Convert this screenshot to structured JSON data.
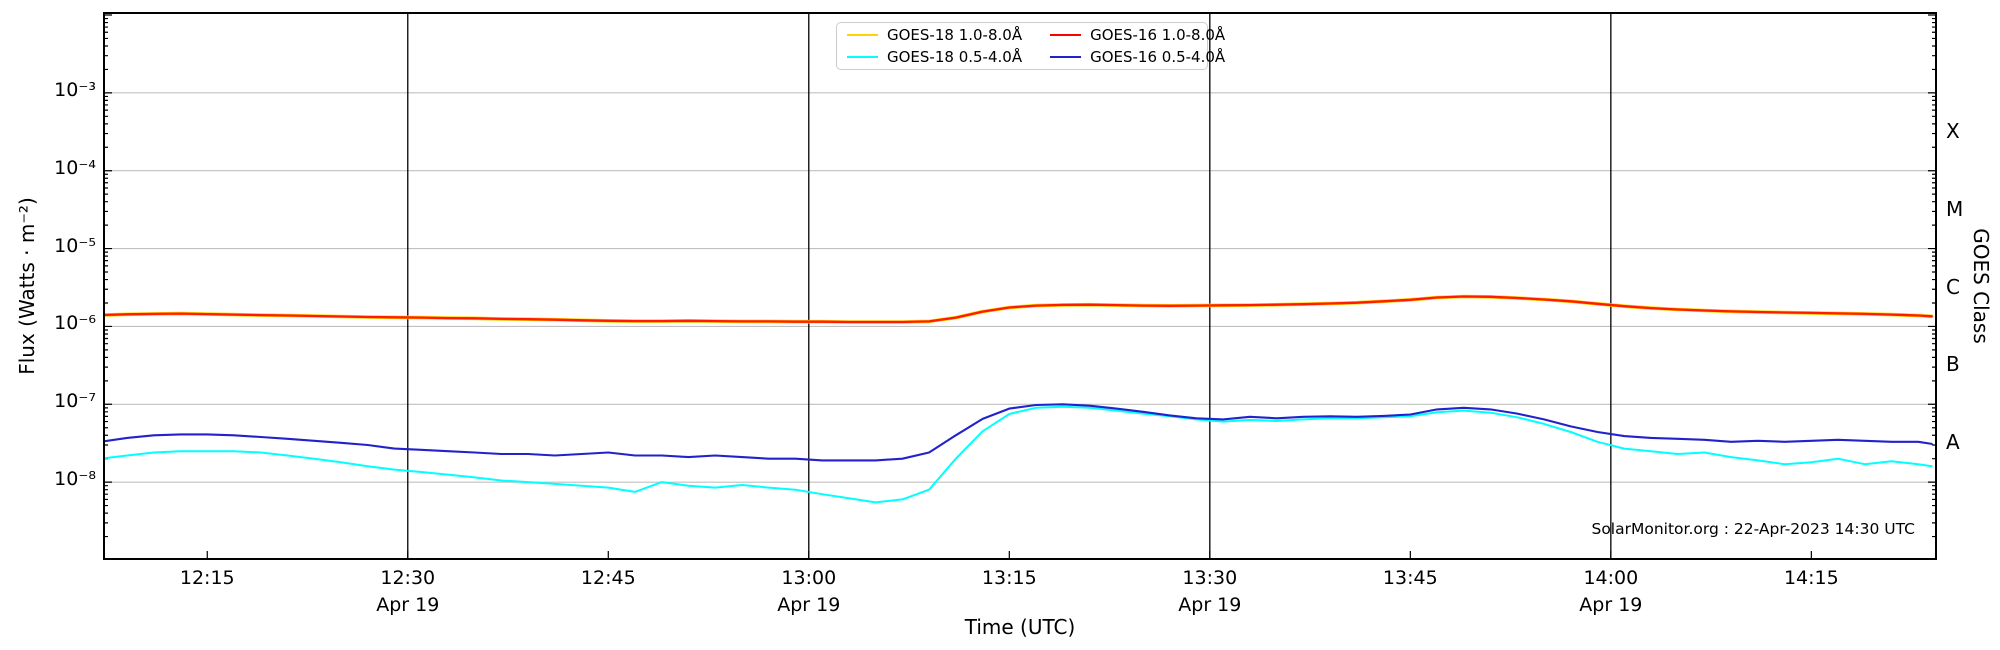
{
  "chart_data": {
    "type": "line",
    "title": "",
    "xlabel": "Time (UTC)",
    "ylabel_left": "Flux (Watts · m⁻²)",
    "ylabel_right": "GOES Class",
    "yscale": "log",
    "ylim": [
      1e-09,
      0.01
    ],
    "xlim_minutes_after_1200": [
      7.2,
      144.4
    ],
    "grid": "horizontal decade gridlines",
    "legend_position": "top center",
    "x_ticks": [
      {
        "minute": 15,
        "label": "12:15"
      },
      {
        "minute": 30,
        "label": "12:30"
      },
      {
        "minute": 45,
        "label": "12:45"
      },
      {
        "minute": 60,
        "label": "13:00"
      },
      {
        "minute": 75,
        "label": "13:15"
      },
      {
        "minute": 90,
        "label": "13:30"
      },
      {
        "minute": 105,
        "label": "13:45"
      },
      {
        "minute": 120,
        "label": "14:00"
      },
      {
        "minute": 135,
        "label": "14:15"
      }
    ],
    "day_label": "Apr 19",
    "day_label_minutes": [
      30,
      60,
      90,
      120
    ],
    "day_line_minutes": [
      30,
      60,
      90,
      120
    ],
    "y_ticks": [
      {
        "exp": -3,
        "label": "10⁻³"
      },
      {
        "exp": -4,
        "label": "10⁻⁴"
      },
      {
        "exp": -5,
        "label": "10⁻⁵"
      },
      {
        "exp": -6,
        "label": "10⁻⁶"
      },
      {
        "exp": -7,
        "label": "10⁻⁷"
      },
      {
        "exp": -8,
        "label": "10⁻⁸"
      }
    ],
    "goes_class_labels": [
      {
        "label": "X",
        "exp_mid": -3.5
      },
      {
        "label": "M",
        "exp_mid": -4.5
      },
      {
        "label": "C",
        "exp_mid": -5.5
      },
      {
        "label": "B",
        "exp_mid": -6.5
      },
      {
        "label": "A",
        "exp_mid": -7.5
      }
    ],
    "colors": {
      "grid": "#c0c0c0",
      "frame": "#000000",
      "day_line": "#000000"
    },
    "x_minutes": [
      7,
      9,
      11,
      13,
      15,
      17,
      19,
      21,
      23,
      25,
      27,
      29,
      31,
      33,
      35,
      37,
      39,
      41,
      43,
      45,
      47,
      49,
      51,
      53,
      55,
      57,
      59,
      61,
      63,
      65,
      67,
      69,
      71,
      73,
      75,
      77,
      79,
      81,
      83,
      85,
      87,
      89,
      91,
      93,
      95,
      97,
      99,
      101,
      103,
      105,
      107,
      109,
      111,
      113,
      115,
      117,
      119,
      121,
      123,
      125,
      127,
      129,
      131,
      133,
      135,
      137,
      139,
      141,
      143,
      144
    ],
    "series": [
      {
        "name": "GOES-18 1.0-8.0Å",
        "color": "#ffd400",
        "width": 3.6,
        "note": "hidden beneath GOES-16 1.0-8.0Å trace",
        "values": [
          1.4e-06,
          1.43e-06,
          1.45e-06,
          1.46e-06,
          1.44e-06,
          1.42e-06,
          1.4e-06,
          1.38e-06,
          1.36e-06,
          1.34e-06,
          1.32e-06,
          1.31e-06,
          1.3e-06,
          1.28e-06,
          1.27e-06,
          1.25e-06,
          1.24e-06,
          1.22e-06,
          1.2e-06,
          1.18e-06,
          1.17e-06,
          1.17e-06,
          1.18e-06,
          1.17e-06,
          1.16e-06,
          1.16e-06,
          1.15e-06,
          1.15e-06,
          1.14e-06,
          1.14e-06,
          1.14e-06,
          1.16e-06,
          1.3e-06,
          1.55e-06,
          1.75e-06,
          1.85e-06,
          1.89e-06,
          1.9e-06,
          1.88e-06,
          1.85e-06,
          1.84e-06,
          1.85e-06,
          1.87e-06,
          1.88e-06,
          1.9e-06,
          1.93e-06,
          1.97e-06,
          2.02e-06,
          2.1e-06,
          2.2e-06,
          2.35e-06,
          2.42e-06,
          2.4e-06,
          2.32e-06,
          2.22e-06,
          2.1e-06,
          1.95e-06,
          1.82e-06,
          1.72e-06,
          1.65e-06,
          1.6e-06,
          1.56e-06,
          1.53e-06,
          1.51e-06,
          1.49e-06,
          1.47e-06,
          1.45e-06,
          1.42e-06,
          1.38e-06,
          1.35e-06
        ]
      },
      {
        "name": "GOES-18 0.5-4.0Å",
        "color": "#00ffff",
        "width": 2.0,
        "values": [
          2e-08,
          2.2e-08,
          2.4e-08,
          2.5e-08,
          2.5e-08,
          2.5e-08,
          2.4e-08,
          2.2e-08,
          2e-08,
          1.8e-08,
          1.6e-08,
          1.45e-08,
          1.35e-08,
          1.25e-08,
          1.15e-08,
          1.05e-08,
          1e-08,
          9.5e-09,
          9e-09,
          8.5e-09,
          7.5e-09,
          1e-08,
          9e-09,
          8.5e-09,
          9.2e-09,
          8.5e-09,
          8e-09,
          7e-09,
          6.2e-09,
          5.5e-09,
          6e-09,
          8e-09,
          2e-08,
          4.5e-08,
          7.5e-08,
          9e-08,
          9.3e-08,
          9e-08,
          8.3e-08,
          7.6e-08,
          7e-08,
          6.4e-08,
          6e-08,
          6.3e-08,
          6.1e-08,
          6.4e-08,
          6.6e-08,
          6.6e-08,
          6.8e-08,
          7e-08,
          7.9e-08,
          8.3e-08,
          7.8e-08,
          6.8e-08,
          5.6e-08,
          4.4e-08,
          3.3e-08,
          2.7e-08,
          2.5e-08,
          2.3e-08,
          2.4e-08,
          2.1e-08,
          1.9e-08,
          1.7e-08,
          1.8e-08,
          2e-08,
          1.7e-08,
          1.85e-08,
          1.7e-08,
          1.6e-08
        ]
      },
      {
        "name": "GOES-16 1.0-8.0Å",
        "color": "#ff1a00",
        "width": 2.3,
        "values": [
          1.4e-06,
          1.43e-06,
          1.45e-06,
          1.46e-06,
          1.44e-06,
          1.42e-06,
          1.4e-06,
          1.38e-06,
          1.36e-06,
          1.34e-06,
          1.32e-06,
          1.31e-06,
          1.3e-06,
          1.28e-06,
          1.27e-06,
          1.25e-06,
          1.24e-06,
          1.22e-06,
          1.2e-06,
          1.18e-06,
          1.17e-06,
          1.17e-06,
          1.18e-06,
          1.17e-06,
          1.16e-06,
          1.16e-06,
          1.15e-06,
          1.15e-06,
          1.14e-06,
          1.14e-06,
          1.14e-06,
          1.16e-06,
          1.3e-06,
          1.55e-06,
          1.75e-06,
          1.85e-06,
          1.89e-06,
          1.9e-06,
          1.88e-06,
          1.85e-06,
          1.84e-06,
          1.85e-06,
          1.87e-06,
          1.88e-06,
          1.9e-06,
          1.93e-06,
          1.97e-06,
          2.02e-06,
          2.1e-06,
          2.2e-06,
          2.35e-06,
          2.42e-06,
          2.4e-06,
          2.32e-06,
          2.22e-06,
          2.1e-06,
          1.95e-06,
          1.82e-06,
          1.72e-06,
          1.65e-06,
          1.6e-06,
          1.56e-06,
          1.53e-06,
          1.51e-06,
          1.49e-06,
          1.47e-06,
          1.45e-06,
          1.42e-06,
          1.38e-06,
          1.35e-06
        ]
      },
      {
        "name": "GOES-16 0.5-4.0Å",
        "color": "#2222cc",
        "width": 2.1,
        "values": [
          3.3e-08,
          3.7e-08,
          4e-08,
          4.1e-08,
          4.1e-08,
          4e-08,
          3.8e-08,
          3.6e-08,
          3.4e-08,
          3.2e-08,
          3e-08,
          2.7e-08,
          2.6e-08,
          2.5e-08,
          2.4e-08,
          2.3e-08,
          2.3e-08,
          2.2e-08,
          2.3e-08,
          2.4e-08,
          2.2e-08,
          2.2e-08,
          2.1e-08,
          2.2e-08,
          2.1e-08,
          2e-08,
          2e-08,
          1.9e-08,
          1.9e-08,
          1.9e-08,
          2e-08,
          2.4e-08,
          4e-08,
          6.5e-08,
          8.8e-08,
          9.8e-08,
          1e-07,
          9.6e-08,
          8.8e-08,
          8e-08,
          7.2e-08,
          6.6e-08,
          6.4e-08,
          6.9e-08,
          6.6e-08,
          6.9e-08,
          7e-08,
          6.9e-08,
          7.1e-08,
          7.4e-08,
          8.6e-08,
          9e-08,
          8.6e-08,
          7.6e-08,
          6.4e-08,
          5.2e-08,
          4.4e-08,
          3.9e-08,
          3.7e-08,
          3.6e-08,
          3.5e-08,
          3.3e-08,
          3.4e-08,
          3.3e-08,
          3.4e-08,
          3.5e-08,
          3.4e-08,
          3.3e-08,
          3.3e-08,
          3.1e-08
        ]
      }
    ],
    "watermark": "SolarMonitor.org : 22-Apr-2023 14:30 UTC"
  },
  "legend": {
    "entries": [
      {
        "label": "GOES-18 1.0-8.0Å",
        "color": "#ffd400",
        "column": 0
      },
      {
        "label": "GOES-18 0.5-4.0Å",
        "color": "#00ffff",
        "column": 0
      },
      {
        "label": "GOES-16 1.0-8.0Å",
        "color": "#ff0000",
        "column": 1
      },
      {
        "label": "GOES-16 0.5-4.0Å",
        "color": "#2222cc",
        "column": 1
      }
    ]
  }
}
